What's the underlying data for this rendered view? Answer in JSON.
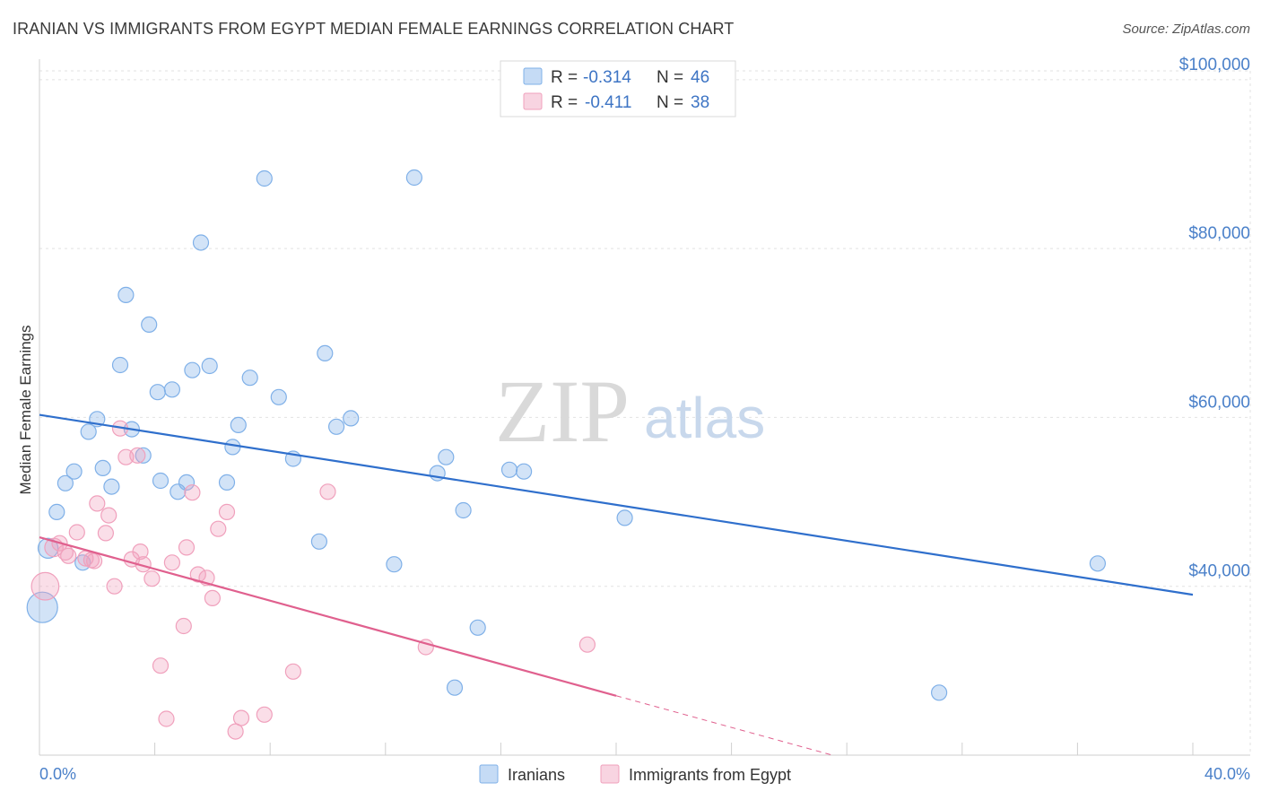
{
  "title": "IRANIAN VS IMMIGRANTS FROM EGYPT MEDIAN FEMALE EARNINGS CORRELATION CHART",
  "source": "Source: ZipAtlas.com",
  "watermark": {
    "zip": "ZIP",
    "atlas": "atlas"
  },
  "legend": {
    "rows": [
      {
        "r_label": "R =",
        "r_value": "-0.314",
        "n_label": "N =",
        "n_value": "46"
      },
      {
        "r_label": "R =",
        "r_value": "-0.411",
        "n_label": "N =",
        "n_value": "38"
      }
    ]
  },
  "chart_data": {
    "type": "scatter",
    "title": "IRANIAN VS IMMIGRANTS FROM EGYPT MEDIAN FEMALE EARNINGS CORRELATION CHART",
    "xlabel": "",
    "ylabel": "Median Female Earnings",
    "xlim": [
      0,
      40
    ],
    "ylim": [
      20000,
      102000
    ],
    "x_tick_labels": [
      "0.0%",
      "40.0%"
    ],
    "y_ticks": [
      {
        "value": 40000,
        "label": "$40,000"
      },
      {
        "value": 60000,
        "label": "$60,000"
      },
      {
        "value": 80000,
        "label": "$80,000"
      },
      {
        "value": 100000,
        "label": "$100,000"
      }
    ],
    "grid": true,
    "legend_position": "top-center",
    "series": [
      {
        "name": "Iranians",
        "color": "#7fb0e8",
        "fill": "rgba(127,176,232,0.35)",
        "line_color": "#2f6fcc",
        "trend": {
          "x0": 0,
          "y0": 60300,
          "x1": 40,
          "y1": 39000,
          "x_solid_end": 40
        },
        "points": [
          [
            0.3,
            44500,
            1.3
          ],
          [
            0.6,
            48800,
            1
          ],
          [
            0.9,
            52200,
            1
          ],
          [
            1.2,
            53600,
            1
          ],
          [
            1.5,
            42800,
            1
          ],
          [
            1.7,
            58300,
            1
          ],
          [
            2.0,
            59800,
            1
          ],
          [
            2.2,
            54000,
            1
          ],
          [
            2.5,
            51800,
            1
          ],
          [
            2.8,
            66200,
            1
          ],
          [
            3.0,
            74500,
            1
          ],
          [
            3.2,
            58600,
            1
          ],
          [
            3.6,
            55500,
            1
          ],
          [
            3.8,
            71000,
            1
          ],
          [
            4.1,
            63000,
            1
          ],
          [
            4.2,
            52500,
            1
          ],
          [
            4.6,
            63300,
            1
          ],
          [
            4.8,
            51200,
            1
          ],
          [
            5.1,
            52300,
            1
          ],
          [
            5.3,
            65600,
            1
          ],
          [
            5.6,
            80700,
            1
          ],
          [
            5.9,
            66100,
            1
          ],
          [
            6.5,
            52300,
            1
          ],
          [
            6.7,
            56500,
            1
          ],
          [
            6.9,
            59100,
            1
          ],
          [
            7.3,
            64700,
            1
          ],
          [
            7.8,
            88300,
            1
          ],
          [
            8.3,
            62400,
            1
          ],
          [
            8.8,
            55100,
            1
          ],
          [
            9.7,
            45300,
            1
          ],
          [
            9.9,
            67600,
            1
          ],
          [
            10.3,
            58900,
            1
          ],
          [
            10.8,
            59900,
            1
          ],
          [
            12.3,
            42600,
            1
          ],
          [
            13.0,
            88400,
            1
          ],
          [
            13.8,
            53400,
            1
          ],
          [
            14.1,
            55300,
            1
          ],
          [
            14.4,
            28000,
            1
          ],
          [
            14.7,
            49000,
            1
          ],
          [
            15.2,
            35100,
            1
          ],
          [
            16.3,
            53800,
            1
          ],
          [
            16.8,
            53600,
            1
          ],
          [
            20.3,
            48100,
            1
          ],
          [
            31.2,
            27400,
            1
          ],
          [
            36.7,
            42700,
            1
          ],
          [
            0.1,
            37500,
            2.0
          ]
        ]
      },
      {
        "name": "Immigrants from Egypt",
        "color": "#f0a0bc",
        "fill": "rgba(240,160,188,0.35)",
        "line_color": "#e0608e",
        "trend": {
          "x0": 0,
          "y0": 45800,
          "x1": 27.5,
          "y1": 20000,
          "x_solid_end": 20
        },
        "points": [
          [
            0.2,
            40000,
            1.8
          ],
          [
            0.5,
            44600,
            1.2
          ],
          [
            0.7,
            45100,
            1
          ],
          [
            1.0,
            43600,
            1
          ],
          [
            1.3,
            46400,
            1
          ],
          [
            1.6,
            43300,
            1
          ],
          [
            1.9,
            43000,
            1
          ],
          [
            2.0,
            49800,
            1
          ],
          [
            2.3,
            46300,
            1
          ],
          [
            2.4,
            48400,
            1
          ],
          [
            2.6,
            40000,
            1
          ],
          [
            2.8,
            58700,
            1
          ],
          [
            3.0,
            55300,
            1
          ],
          [
            3.2,
            43200,
            1
          ],
          [
            3.4,
            55500,
            1
          ],
          [
            3.5,
            44100,
            1
          ],
          [
            3.6,
            42600,
            1
          ],
          [
            3.9,
            40900,
            1
          ],
          [
            4.2,
            30600,
            1
          ],
          [
            4.4,
            24300,
            1
          ],
          [
            4.6,
            42800,
            1
          ],
          [
            5.0,
            35300,
            1
          ],
          [
            5.1,
            44600,
            1
          ],
          [
            5.3,
            51100,
            1
          ],
          [
            5.5,
            41400,
            1
          ],
          [
            5.8,
            41000,
            1
          ],
          [
            6.0,
            38600,
            1
          ],
          [
            6.2,
            46800,
            1
          ],
          [
            6.5,
            48800,
            1
          ],
          [
            6.8,
            22800,
            1
          ],
          [
            7.0,
            24400,
            1
          ],
          [
            7.8,
            24800,
            1
          ],
          [
            8.8,
            29900,
            1
          ],
          [
            10.0,
            51200,
            1
          ],
          [
            13.4,
            32800,
            1
          ],
          [
            19.0,
            33100,
            1
          ],
          [
            0.9,
            44000,
            1
          ],
          [
            1.8,
            43100,
            1
          ]
        ]
      }
    ]
  }
}
